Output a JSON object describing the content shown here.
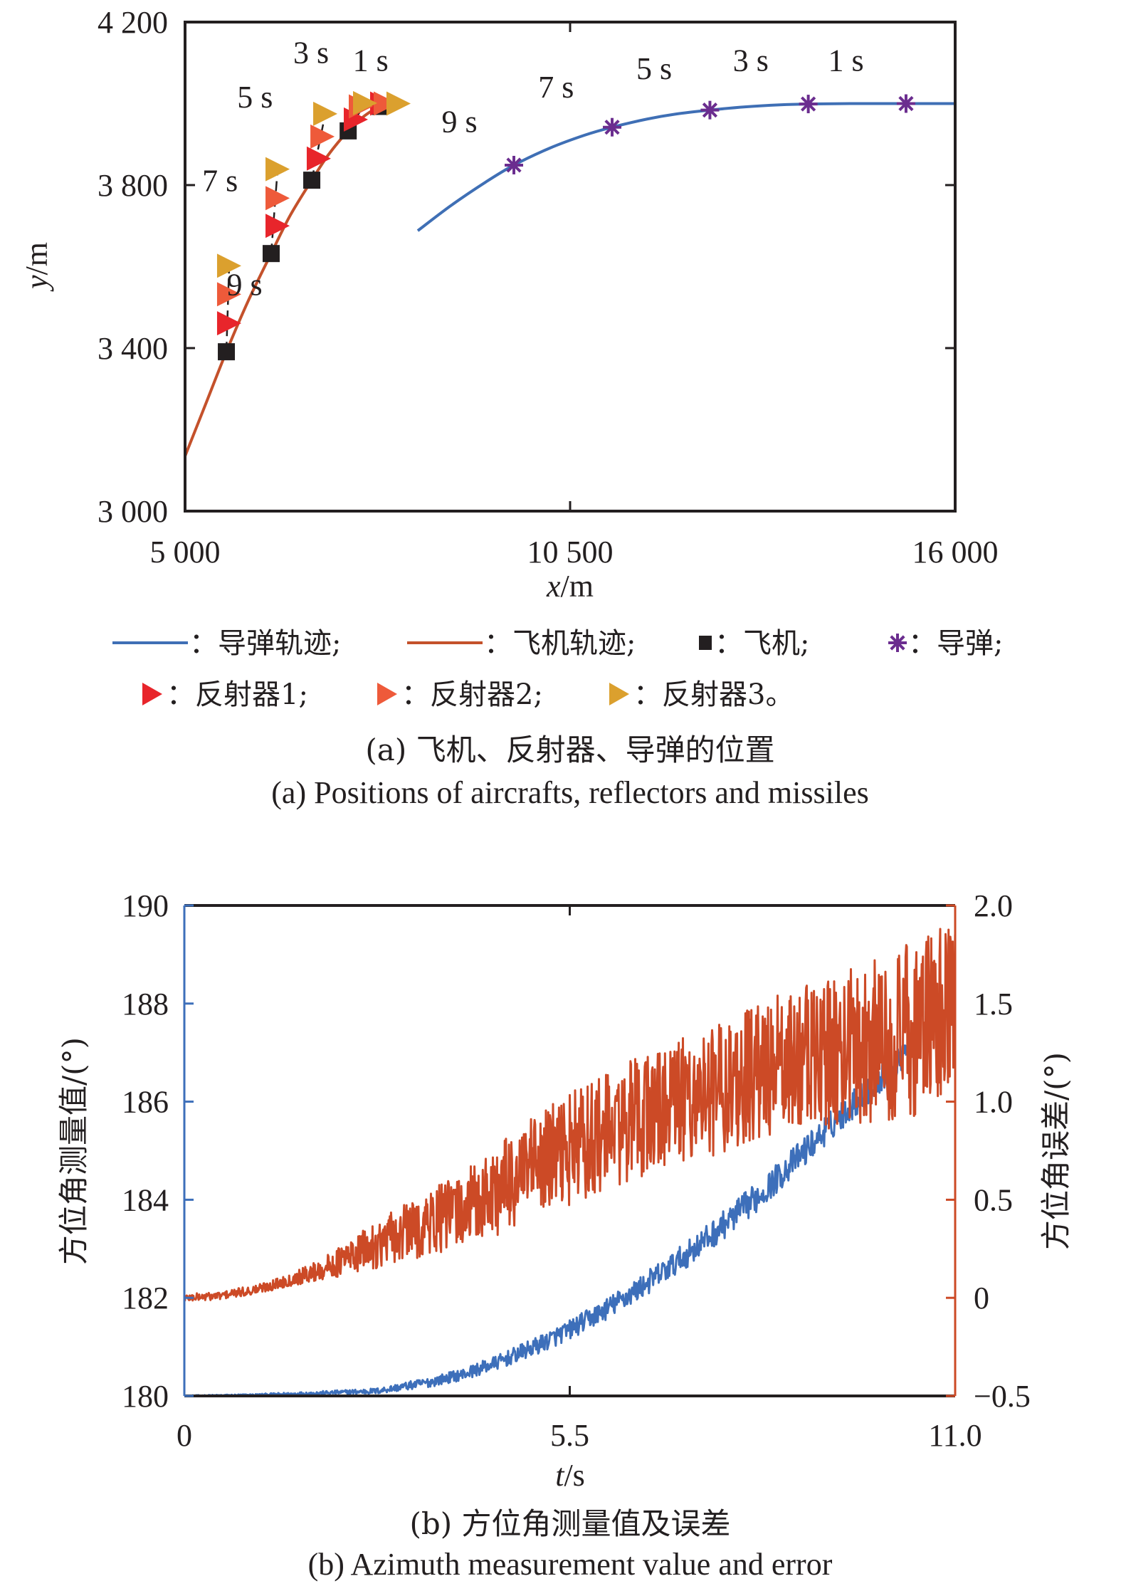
{
  "colors": {
    "missile_traj": "#3f6fb5",
    "aircraft_traj": "#c4512b",
    "aircraft": "#231f20",
    "missile": "#6b2d8f",
    "reflector1": "#e8252b",
    "reflector2": "#ee5a3a",
    "reflector3": "#dba02e",
    "measurement": "#3d6fba",
    "error": "#cc4a26",
    "axis": "#231f20"
  },
  "chart_data": [
    {
      "id": "a",
      "type": "scatter",
      "title": "",
      "xlabel_var": "x",
      "xlabel_unit": "/m",
      "ylabel_var": "y",
      "ylabel_unit": "/m",
      "xlim": [
        5000,
        16000
      ],
      "ylim": [
        3000,
        4200
      ],
      "xticks": [
        5000,
        10500,
        16000
      ],
      "xtick_labels": [
        "5 000",
        "10 500",
        "16 000"
      ],
      "yticks": [
        3000,
        3400,
        3800,
        4200
      ],
      "ytick_labels": [
        "3 000",
        "3 400",
        "3 800",
        "4 200"
      ],
      "grid": false,
      "series": [
        {
          "name": "导弹轨迹",
          "kind": "line",
          "color_key": "missile_traj",
          "x": [
            8324,
            8800,
            9300,
            9697,
            10200,
            10700,
            11100,
            11600,
            12000,
            12497,
            13000,
            13500,
            13902,
            14500,
            15298,
            16000
          ],
          "y": [
            3688,
            3750,
            3808,
            3849,
            3890,
            3922,
            3942,
            3962,
            3974,
            3984,
            3992,
            3997,
            3999,
            4000,
            4000,
            4000
          ]
        },
        {
          "name": "飞机轨迹",
          "kind": "line",
          "color_key": "aircraft_traj",
          "x": [
            5000,
            5300,
            5590,
            5900,
            6230,
            6500,
            6810,
            7050,
            7330,
            7550,
            7765
          ],
          "y": [
            3135,
            3265,
            3391,
            3515,
            3632,
            3725,
            3812,
            3875,
            3933,
            3968,
            3993
          ]
        },
        {
          "name": "飞机",
          "kind": "marker",
          "marker": "square",
          "color_key": "aircraft",
          "t": [
            9,
            7,
            5,
            3,
            1
          ],
          "x": [
            5590,
            6230,
            6810,
            7330,
            7765
          ],
          "y": [
            3391,
            3632,
            3812,
            3933,
            3993
          ]
        },
        {
          "name": "导弹",
          "kind": "marker",
          "marker": "asterisk",
          "color_key": "missile",
          "t": [
            9,
            7,
            5,
            3,
            1
          ],
          "x": [
            9697,
            11100,
            12497,
            13902,
            15298
          ],
          "y": [
            3849,
            3942,
            3984,
            3999,
            4000
          ]
        },
        {
          "name": "反射器1",
          "kind": "marker",
          "marker": "triangle-right",
          "color_key": "reflector1",
          "t": [
            9,
            7,
            5,
            3,
            1
          ],
          "x": [
            5630,
            6322,
            6911,
            7440,
            7816
          ],
          "y": [
            3461,
            3700,
            3865,
            3961,
            4000
          ]
        },
        {
          "name": "反射器2",
          "kind": "marker",
          "marker": "triangle-right",
          "color_key": "reflector2",
          "t": [
            9,
            7,
            5,
            3,
            1
          ],
          "x": [
            5630,
            6322,
            6963,
            7511,
            7867
          ],
          "y": [
            3532,
            3768,
            3919,
            3993,
            4000
          ]
        },
        {
          "name": "反射器3",
          "kind": "marker",
          "marker": "triangle-right",
          "color_key": "reflector3",
          "t": [
            9,
            7,
            5,
            3,
            1
          ],
          "x": [
            5630,
            6322,
            7003,
            7572,
            8050
          ],
          "y": [
            3602,
            3839,
            3975,
            4001,
            4000
          ]
        }
      ],
      "annotations": [
        {
          "text": "9 s",
          "x": 5850,
          "y": 3530
        },
        {
          "text": "7 s",
          "x": 5500,
          "y": 3785
        },
        {
          "text": "5 s",
          "x": 6000,
          "y": 3990
        },
        {
          "text": "3 s",
          "x": 6800,
          "y": 4100
        },
        {
          "text": "1 s",
          "x": 7650,
          "y": 4080
        },
        {
          "text": "9 s",
          "x": 8920,
          "y": 3930
        },
        {
          "text": "7 s",
          "x": 10300,
          "y": 4015
        },
        {
          "text": "5 s",
          "x": 11700,
          "y": 4060
        },
        {
          "text": "3 s",
          "x": 13080,
          "y": 4080
        },
        {
          "text": "1 s",
          "x": 14440,
          "y": 4080
        }
      ],
      "legend": {
        "placement": "bottom",
        "items": [
          {
            "symbol": "line",
            "color_key": "missile_traj",
            "label": "：导弹轨迹;"
          },
          {
            "symbol": "line",
            "color_key": "aircraft_traj",
            "label": "：飞机轨迹;"
          },
          {
            "symbol": "square",
            "color_key": "aircraft",
            "label": "：飞机;"
          },
          {
            "symbol": "asterisk",
            "color_key": "missile",
            "label": "：导弹;"
          },
          {
            "symbol": "triangle-right",
            "color_key": "reflector1",
            "label": "：反射器1;"
          },
          {
            "symbol": "triangle-right",
            "color_key": "reflector2",
            "label": "：反射器2;"
          },
          {
            "symbol": "triangle-right",
            "color_key": "reflector3",
            "label": "：反射器3。"
          }
        ]
      },
      "caption_cn": "(a) 飞机、反射器、导弹的位置",
      "caption_en": "(a) Positions of aircrafts, reflectors and missiles"
    },
    {
      "id": "b",
      "type": "line",
      "title": "",
      "xlabel_var": "t",
      "xlabel_unit": "/s",
      "ylabel": "方位角测量值/(°)",
      "y2label": "方位角误差/(°)",
      "xlim": [
        0,
        11
      ],
      "ylim": [
        180,
        190
      ],
      "y2lim": [
        -0.5,
        2.0
      ],
      "xticks": [
        0,
        5.5,
        11
      ],
      "xtick_labels": [
        "0",
        "5.5",
        "11.0"
      ],
      "yticks": [
        180,
        182,
        184,
        186,
        188,
        190
      ],
      "ytick_labels": [
        "180",
        "182",
        "184",
        "186",
        "188",
        "190"
      ],
      "y2ticks": [
        -0.5,
        0,
        0.5,
        1.0,
        1.5,
        2.0
      ],
      "y2tick_labels": [
        "−0.5",
        "0",
        "0.5",
        "1.0",
        "1.5",
        "2.0"
      ],
      "grid": false,
      "series": [
        {
          "name": "方位角测量值",
          "axis": "left",
          "color_key": "measurement",
          "t": [
            0,
            1,
            2,
            2.75,
            3.5,
            4,
            4.5,
            5,
            5.5,
            6,
            6.5,
            7,
            7.5,
            8,
            8.25,
            8.5,
            9,
            9.5,
            10,
            10.3
          ],
          "mean": [
            180.0,
            180.02,
            180.06,
            180.1,
            180.28,
            180.45,
            180.7,
            181.0,
            181.35,
            181.75,
            182.2,
            182.7,
            183.25,
            183.85,
            184.15,
            184.5,
            185.2,
            185.9,
            186.55,
            187.05
          ],
          "noise_halfwidth": [
            0.01,
            0.02,
            0.04,
            0.06,
            0.1,
            0.12,
            0.15,
            0.18,
            0.2,
            0.22,
            0.24,
            0.26,
            0.28,
            0.3,
            0.3,
            0.3,
            0.3,
            0.3,
            0.3,
            0.3
          ]
        },
        {
          "name": "方位角误差",
          "axis": "right",
          "color_key": "error",
          "t": [
            0,
            0.5,
            1,
            1.5,
            2,
            2.5,
            3,
            3.5,
            4,
            4.5,
            5,
            5.5,
            6,
            6.5,
            7,
            7.5,
            8,
            8.5,
            9,
            9.5,
            10,
            10.5,
            11
          ],
          "mean": [
            0.0,
            0.01,
            0.04,
            0.09,
            0.15,
            0.23,
            0.31,
            0.38,
            0.45,
            0.55,
            0.66,
            0.76,
            0.84,
            0.92,
            0.99,
            1.05,
            1.12,
            1.18,
            1.23,
            1.28,
            1.33,
            1.38,
            1.43
          ],
          "noise_halfwidth": [
            0.02,
            0.02,
            0.025,
            0.03,
            0.06,
            0.1,
            0.14,
            0.17,
            0.2,
            0.24,
            0.27,
            0.29,
            0.3,
            0.31,
            0.32,
            0.33,
            0.35,
            0.37,
            0.39,
            0.41,
            0.43,
            0.46,
            0.5
          ]
        }
      ],
      "caption_cn": "(b) 方位角测量值及误差",
      "caption_en": "(b) Azimuth measurement value and error"
    }
  ]
}
